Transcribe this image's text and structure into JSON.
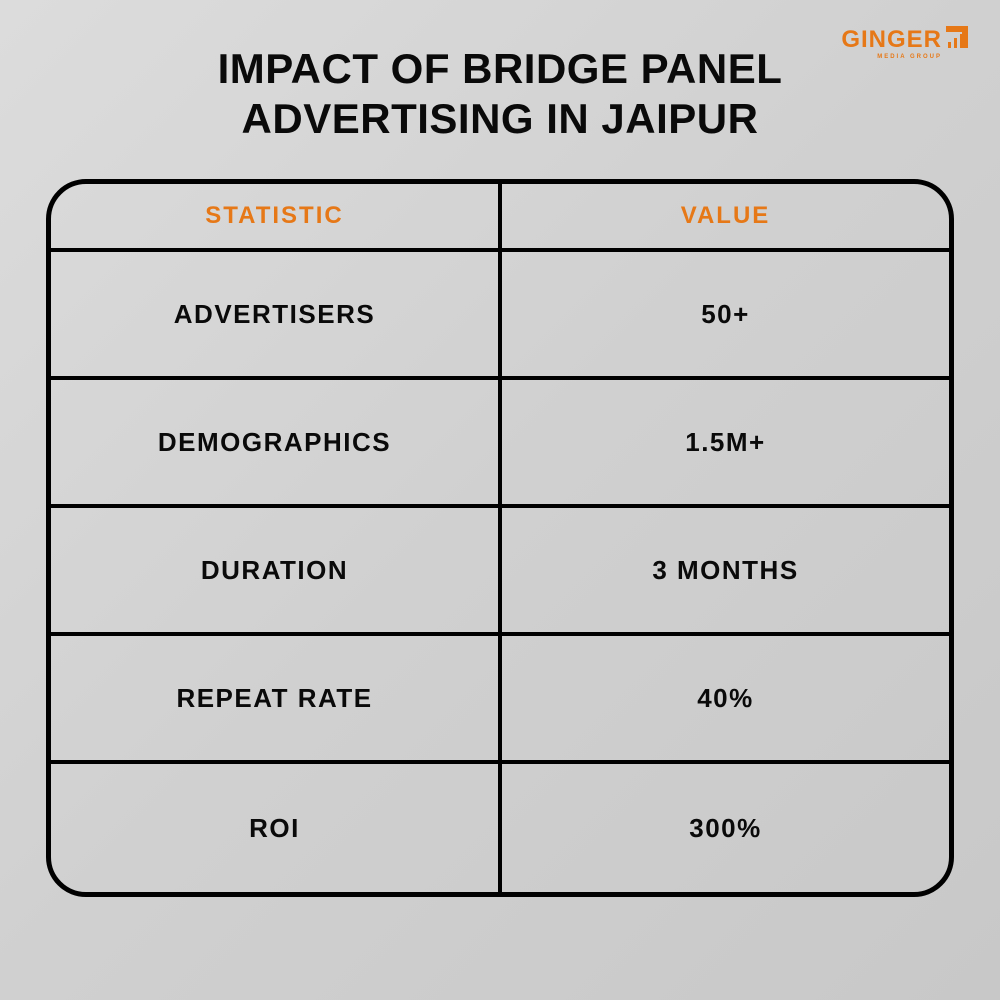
{
  "logo": {
    "name": "GINGER",
    "subtitle": "MEDIA GROUP"
  },
  "title_line1": "IMPACT OF BRIDGE PANEL",
  "title_line2": "ADVERTISING IN JAIPUR",
  "table": {
    "type": "table",
    "border_color": "#000000",
    "border_width": 5,
    "border_radius": 40,
    "header_color": "#e67817",
    "body_color": "#0a0a0a",
    "header_fontsize": 24,
    "body_fontsize": 26,
    "columns": [
      "STATISTIC",
      "VALUE"
    ],
    "rows": [
      [
        "ADVERTISERS",
        "50+"
      ],
      [
        "DEMOGRAPHICS",
        "1.5M+"
      ],
      [
        "DURATION",
        "3 MONTHS"
      ],
      [
        "REPEAT RATE",
        "40%"
      ],
      [
        "ROI",
        "300%"
      ]
    ]
  },
  "background_gradient": [
    "#dcdcdc",
    "#c8c8c8"
  ],
  "accent_color": "#e67817"
}
